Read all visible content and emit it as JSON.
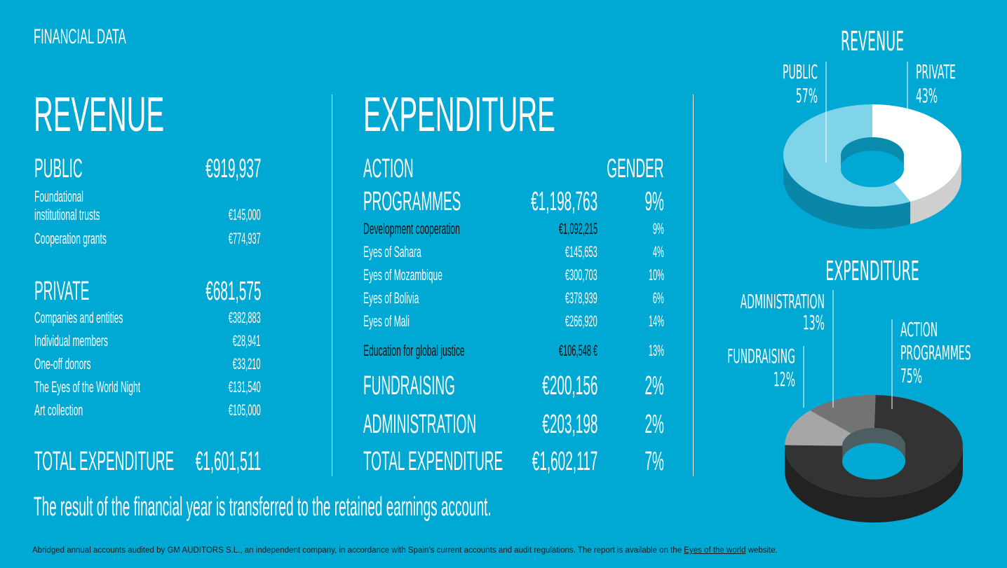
{
  "page_title": "FINANCIAL DATA",
  "revenue": {
    "heading": "REVENUE",
    "public": {
      "label": "PUBLIC",
      "amount": "€919,937",
      "items": [
        {
          "label_line1": "Foundational",
          "label_line2": "institutional trusts",
          "amount": "€145,000"
        },
        {
          "label": "Cooperation grants",
          "amount": "€774,937"
        }
      ]
    },
    "private": {
      "label": "PRIVATE",
      "amount": "€681,575",
      "items": [
        {
          "label": "Companies and entities",
          "amount": "€382,883"
        },
        {
          "label": "Individual members",
          "amount": "€28,941"
        },
        {
          "label": "One-off donors",
          "amount": "€33,210"
        },
        {
          "label": "The Eyes of the World Night",
          "amount": "€131,540"
        },
        {
          "label": "Art collection",
          "amount": "€105,000"
        }
      ]
    },
    "total": {
      "label": "TOTAL EXPENDITURE",
      "amount": "€1,601,511"
    }
  },
  "expenditure": {
    "heading": "EXPENDITURE",
    "gender_header": "GENDER",
    "action": {
      "label_line1": "ACTION",
      "label_line2": "PROGRAMMES",
      "amount": "€1,198,763",
      "gender": "9%"
    },
    "development": {
      "label": "Development cooperation",
      "amount": "€1,092,215",
      "gender": "9%"
    },
    "countries": [
      {
        "label": "Eyes of Sahara",
        "amount": "€145,653",
        "gender": "4%"
      },
      {
        "label": "Eyes of Mozambique",
        "amount": "€300,703",
        "gender": "10%"
      },
      {
        "label": "Eyes of Bolivia",
        "amount": "€378,939",
        "gender": "6%"
      },
      {
        "label": "Eyes of Mali",
        "amount": "€266,920",
        "gender": "14%"
      }
    ],
    "education": {
      "label": "Education for global justice",
      "amount": "€106,548 €",
      "gender": "13%"
    },
    "fundraising": {
      "label": "FUNDRAISING",
      "amount": "€200,156",
      "gender": "2%"
    },
    "administration": {
      "label": "ADMINISTRATION",
      "amount": "€203,198",
      "gender": "2%"
    },
    "total": {
      "label": "TOTAL EXPENDITURE",
      "amount": "€1,602,117",
      "gender": "7%"
    }
  },
  "result_note": "The result of the financial year is transferred to the retained earnings account.",
  "footer": {
    "text": "Abridged annual accounts audited by GM AUDITORS S.L., an independent company, in accordance with Spain’s current accounts and audit regulations. The report is available on the ",
    "link": "Eyes of the world",
    "suffix": " website."
  },
  "charts": {
    "revenue_chart": {
      "title": "REVENUE",
      "slices": [
        {
          "label": "PUBLIC",
          "pct_label": "57%",
          "value": 57,
          "color": "#7fd4ea",
          "side_color": "#0a87a8"
        },
        {
          "label": "PRIVATE",
          "pct_label": "43%",
          "value": 43,
          "color": "#ffffff",
          "side_color": "#cfcfcf"
        }
      ]
    },
    "expenditure_chart": {
      "title": "EXPENDITURE",
      "slices": [
        {
          "label": "ACTION",
          "label2": "PROGRAMMES",
          "pct_label": "75%",
          "value": 75,
          "color": "#333333",
          "side_color": "#222222"
        },
        {
          "label": "FUNDRAISING",
          "pct_label": "12%",
          "value": 12,
          "color": "#a6a6a6",
          "side_color": "#7d7d7d"
        },
        {
          "label": "ADMINISTRATION",
          "pct_label": "13%",
          "value": 13,
          "color": "#737373",
          "side_color": "#555555"
        }
      ]
    }
  }
}
